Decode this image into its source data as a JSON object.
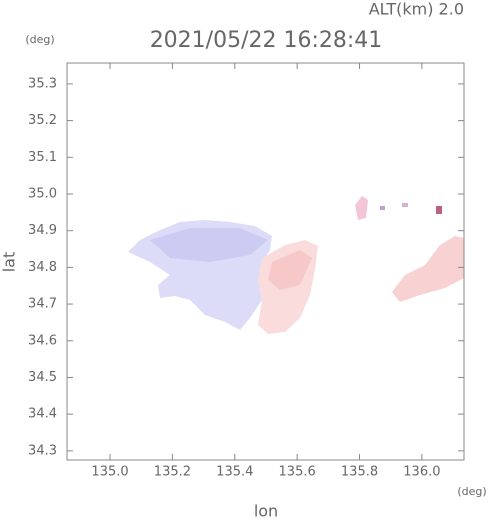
{
  "chart_data": {
    "type": "map",
    "title": "2021/05/22 16:28:41",
    "subtitle": "ALT(km) 2.0",
    "x_label": "lon",
    "y_label": "lat",
    "x_unit": "(deg)",
    "y_unit": "(deg)",
    "xlim": [
      134.862,
      136.135
    ],
    "ylim": [
      34.275,
      35.357
    ],
    "xticks": [
      {
        "value": 135,
        "label": "135.0"
      },
      135.2,
      135.4,
      135.6,
      135.8,
      {
        "value": 136,
        "label": "136.0"
      }
    ],
    "yticks": [
      34.3,
      34.4,
      34.5,
      34.6,
      34.7,
      34.8,
      34.9,
      {
        "value": 35,
        "label": "35.0"
      },
      35.1,
      35.2,
      35.3
    ]
  }
}
